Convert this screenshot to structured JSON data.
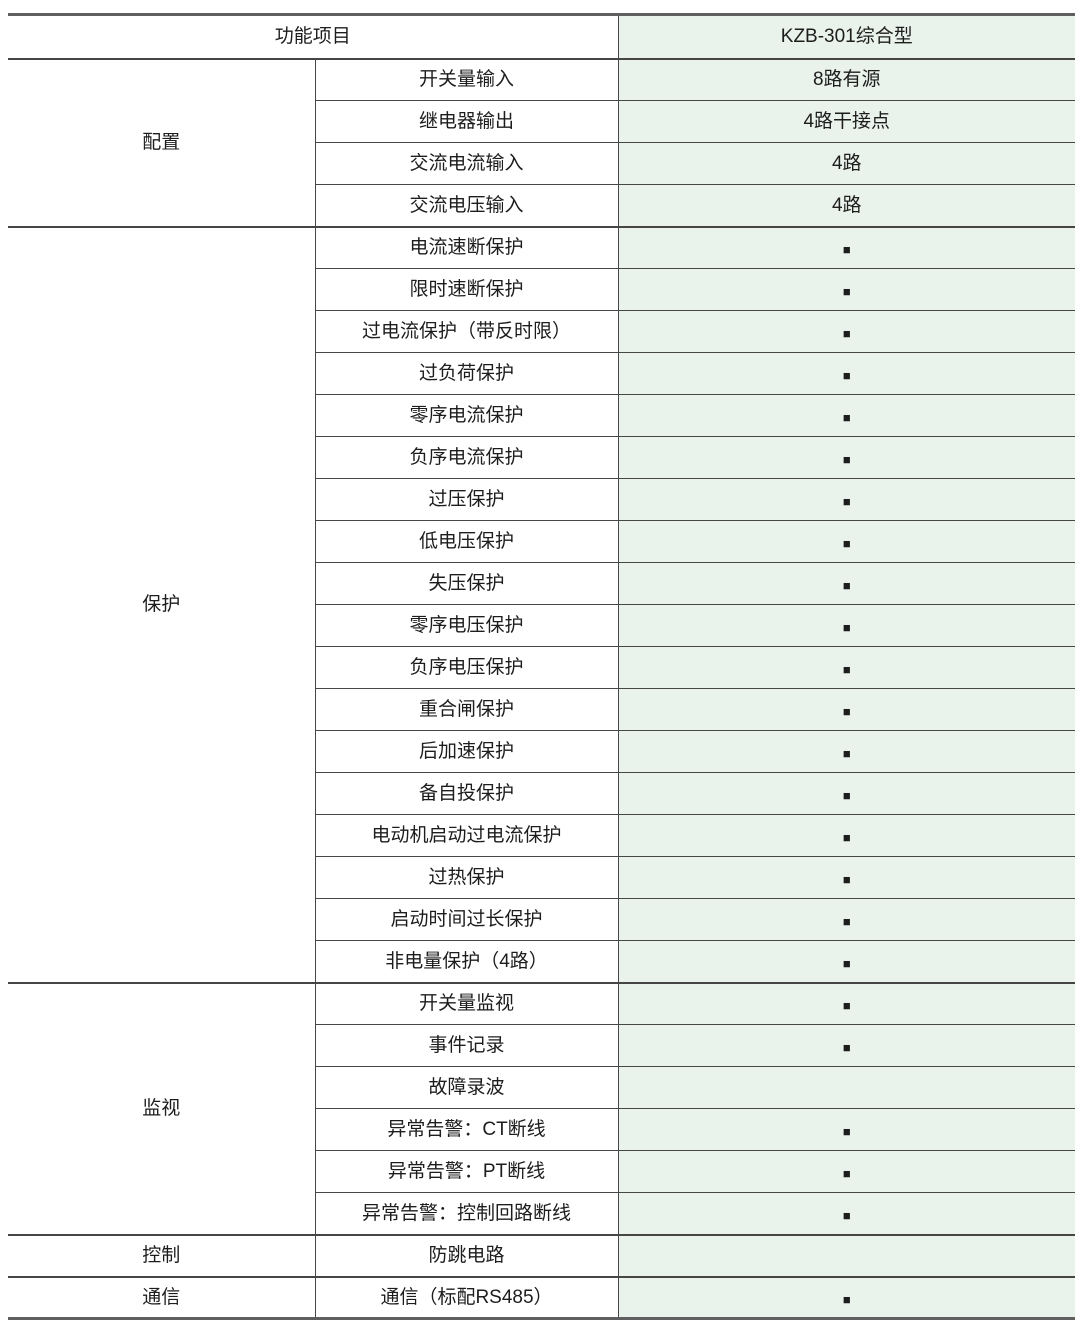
{
  "table": {
    "header": {
      "function_col": "功能项目",
      "model_col": "KZB-301综合型"
    },
    "check_glyph": "■",
    "colors": {
      "value_col_bg": "#eaf2ec",
      "border_heavy": "#5f5f5f",
      "border_mid": "#454545",
      "border_thin": "#474747",
      "text": "#1d1d1d"
    },
    "sections": [
      {
        "group": "配置",
        "rows": [
          {
            "item": "开关量输入",
            "value": "8路有源"
          },
          {
            "item": "继电器输出",
            "value": "4路干接点"
          },
          {
            "item": "交流电流输入",
            "value": "4路"
          },
          {
            "item": "交流电压输入",
            "value": "4路"
          }
        ]
      },
      {
        "group": "保护",
        "rows": [
          {
            "item": "电流速断保护",
            "value": "■"
          },
          {
            "item": "限时速断保护",
            "value": "■"
          },
          {
            "item": "过电流保护（带反时限）",
            "value": "■"
          },
          {
            "item": "过负荷保护",
            "value": "■"
          },
          {
            "item": "零序电流保护",
            "value": "■"
          },
          {
            "item": "负序电流保护",
            "value": "■"
          },
          {
            "item": "过压保护",
            "value": "■"
          },
          {
            "item": "低电压保护",
            "value": "■"
          },
          {
            "item": "失压保护",
            "value": "■"
          },
          {
            "item": "零序电压保护",
            "value": "■"
          },
          {
            "item": "负序电压保护",
            "value": "■"
          },
          {
            "item": "重合闸保护",
            "value": "■"
          },
          {
            "item": "后加速保护",
            "value": "■"
          },
          {
            "item": "备自投保护",
            "value": "■"
          },
          {
            "item": "电动机启动过电流保护",
            "value": "■"
          },
          {
            "item": "过热保护",
            "value": "■"
          },
          {
            "item": "启动时间过长保护",
            "value": "■"
          },
          {
            "item": "非电量保护（4路）",
            "value": "■"
          }
        ]
      },
      {
        "group": "监视",
        "rows": [
          {
            "item": "开关量监视",
            "value": "■"
          },
          {
            "item": "事件记录",
            "value": "■"
          },
          {
            "item": "故障录波",
            "value": ""
          },
          {
            "item": "异常告警：CT断线",
            "value": "■"
          },
          {
            "item": "异常告警：PT断线",
            "value": "■"
          },
          {
            "item": "异常告警：控制回路断线",
            "value": "■"
          }
        ]
      },
      {
        "group": "控制",
        "rows": [
          {
            "item": "防跳电路",
            "value": ""
          }
        ]
      },
      {
        "group": "通信",
        "rows": [
          {
            "item": "通信（标配RS485）",
            "value": "■"
          }
        ]
      }
    ]
  }
}
